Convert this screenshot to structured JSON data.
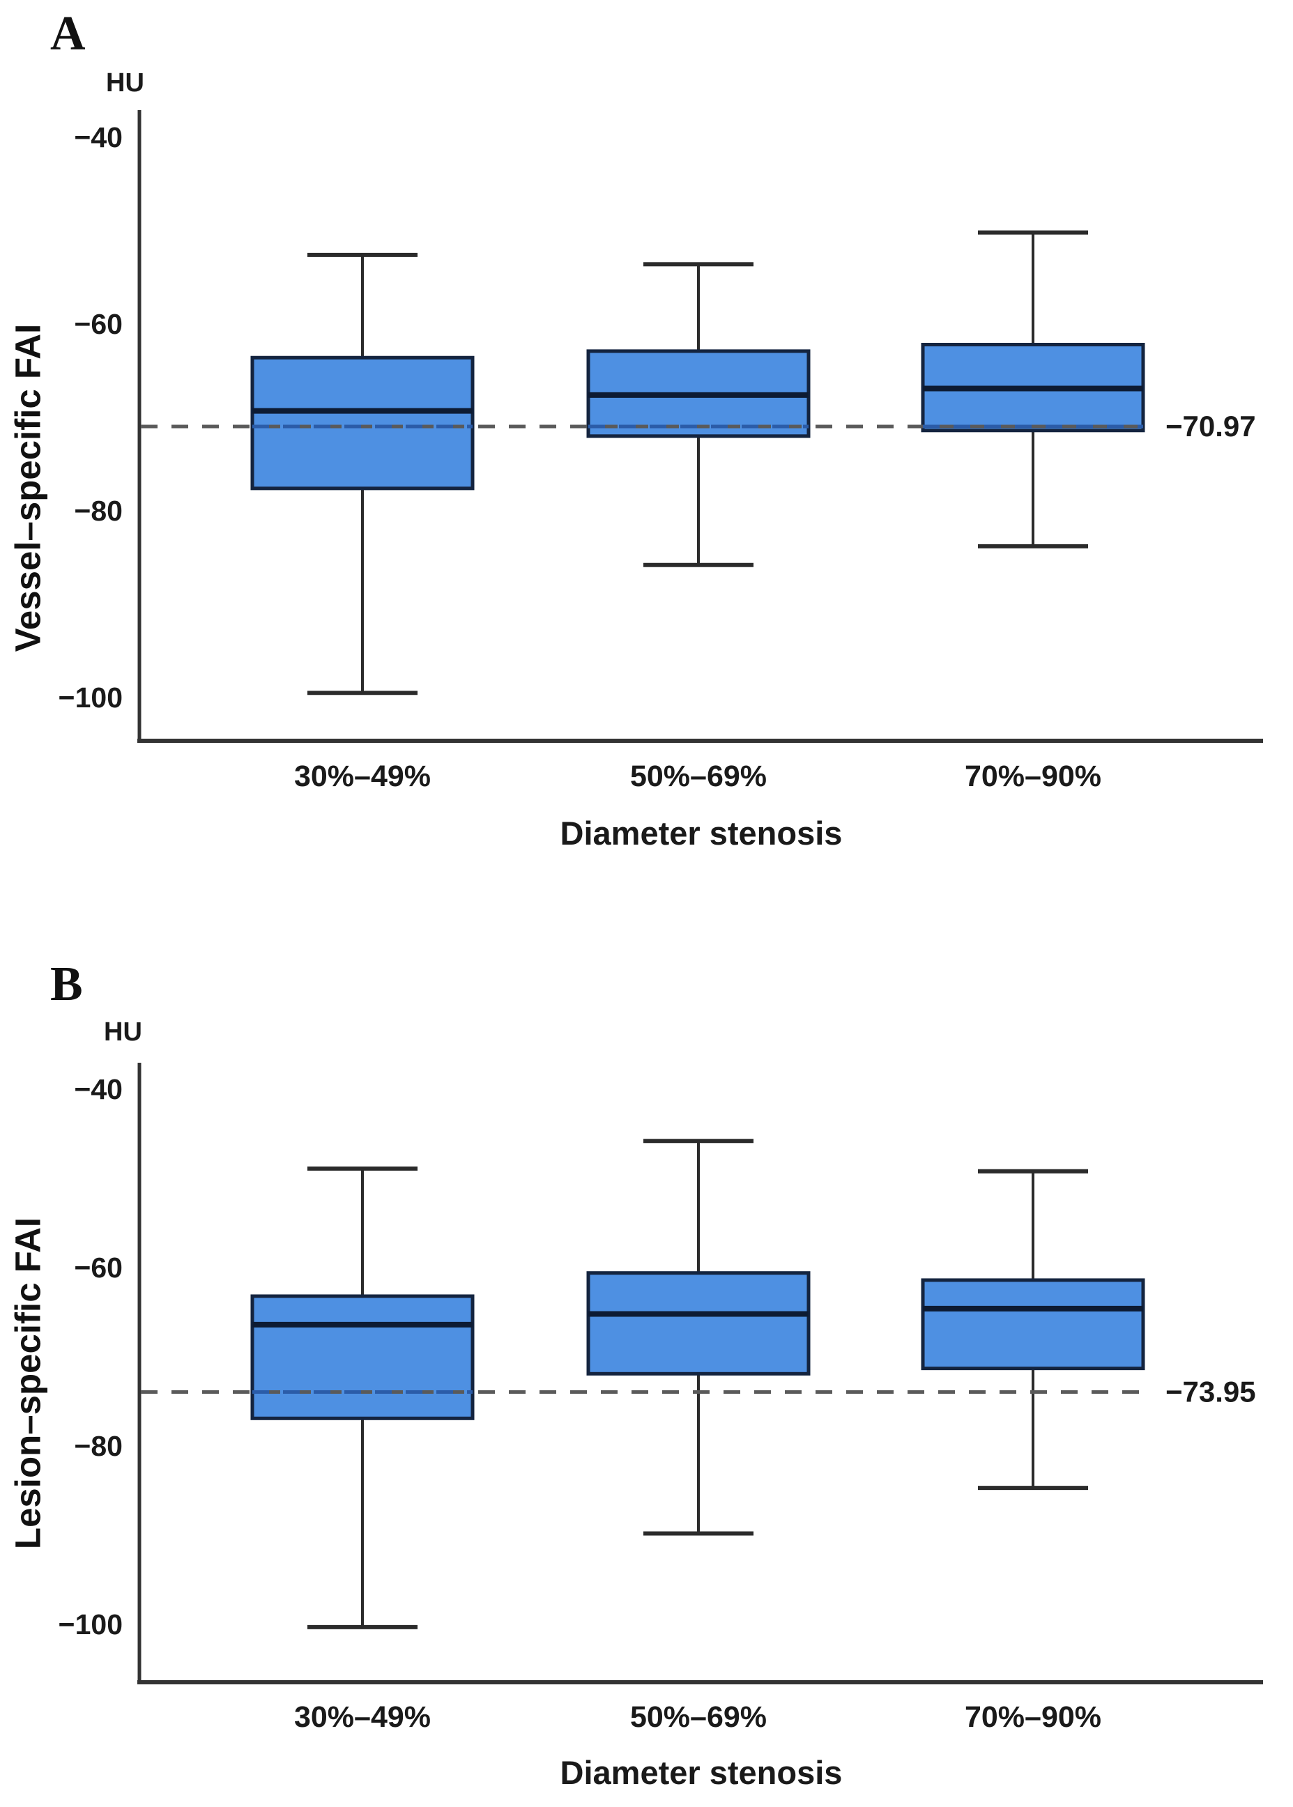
{
  "figure": {
    "background": "#ffffff",
    "panels": [
      {
        "letter": "A",
        "unit_label": "HU",
        "y_axis_label": "Vessel–specific FAI",
        "x_axis_label": "Diameter stenosis"
      },
      {
        "letter": "B",
        "unit_label": "HU",
        "y_axis_label": "Lesion–specific FAI",
        "x_axis_label": "Diameter stenosis"
      }
    ]
  },
  "colors": {
    "box_fill": "#4E90E2",
    "box_border": "#14243F",
    "median_line": "#0D1B33",
    "whisker": "#2B2B2B",
    "axis": "#333333",
    "ref_dash_outside": "#5A5A5A",
    "ref_dash_inside": "#2B5CA8",
    "text": "#1a1a1a"
  },
  "chart_data": [
    {
      "type": "box",
      "panel": "A",
      "title": "Vessel–specific FAI by diameter stenosis",
      "unit": "HU",
      "xlabel": "Diameter stenosis",
      "ylabel": "Vessel–specific FAI",
      "ylim": [
        -105,
        -38
      ],
      "grid": false,
      "y_ticks": [
        {
          "value": -40,
          "label": "−40"
        },
        {
          "value": -60,
          "label": "−60"
        },
        {
          "value": -80,
          "label": "−80"
        },
        {
          "value": -100,
          "label": "−100"
        }
      ],
      "categories": [
        "30%–49%",
        "50%–69%",
        "70%–90%"
      ],
      "reference_line": {
        "value": -70.97,
        "label": "−70.97"
      },
      "boxes": [
        {
          "category": "30%–49%",
          "whisker_low": -99.5,
          "q1": -77.6,
          "median": -69.3,
          "q3": -63.6,
          "whisker_high": -52.6
        },
        {
          "category": "50%–69%",
          "whisker_low": -85.8,
          "q1": -72.0,
          "median": -67.6,
          "q3": -62.9,
          "whisker_high": -53.6
        },
        {
          "category": "70%–90%",
          "whisker_low": -83.8,
          "q1": -71.4,
          "median": -66.9,
          "q3": -62.2,
          "whisker_high": -50.2
        }
      ]
    },
    {
      "type": "box",
      "panel": "B",
      "title": "Lesion–specific FAI by diameter stenosis",
      "unit": "HU",
      "xlabel": "Diameter stenosis",
      "ylabel": "Lesion–specific FAI",
      "ylim": [
        -105,
        -38
      ],
      "grid": false,
      "y_ticks": [
        {
          "value": -40,
          "label": "−40"
        },
        {
          "value": -60,
          "label": "−60"
        },
        {
          "value": -80,
          "label": "−80"
        },
        {
          "value": -100,
          "label": "−100"
        }
      ],
      "categories": [
        "30%–49%",
        "50%–69%",
        "70%–90%"
      ],
      "reference_line": {
        "value": -73.95,
        "label": "−73.95"
      },
      "boxes": [
        {
          "category": "30%–49%",
          "whisker_low": -100.3,
          "q1": -76.9,
          "median": -66.4,
          "q3": -63.2,
          "whisker_high": -48.9
        },
        {
          "category": "50%–69%",
          "whisker_low": -89.8,
          "q1": -71.9,
          "median": -65.2,
          "q3": -60.6,
          "whisker_high": -45.8
        },
        {
          "category": "70%–90%",
          "whisker_low": -84.7,
          "q1": -71.3,
          "median": -64.6,
          "q3": -61.4,
          "whisker_high": -49.2
        }
      ]
    }
  ]
}
